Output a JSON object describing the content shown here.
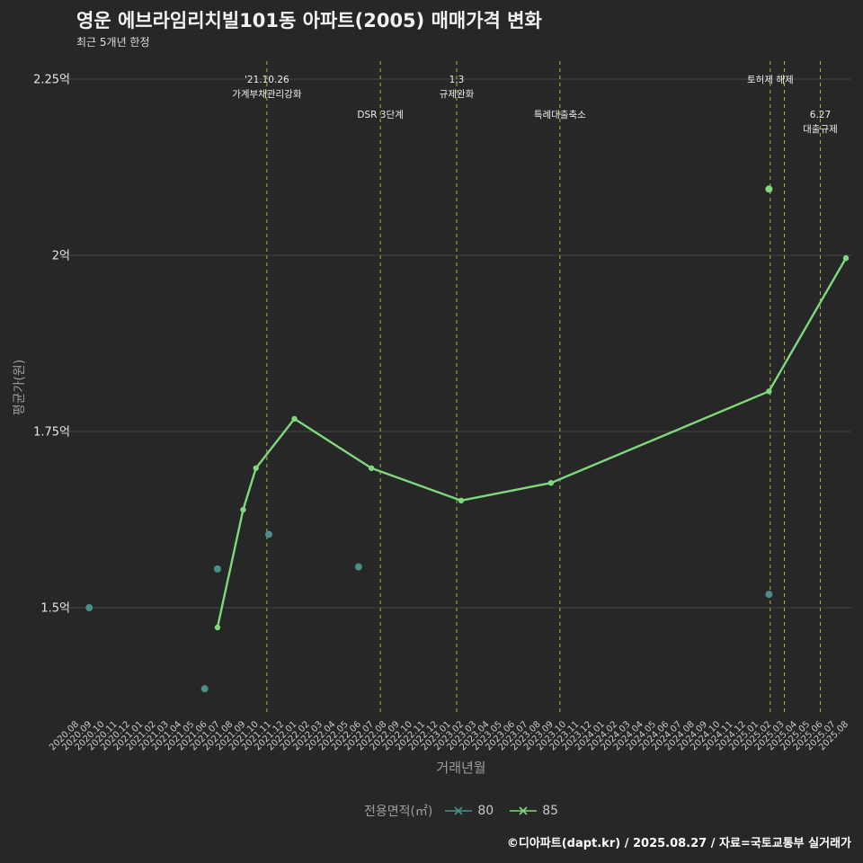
{
  "header": {
    "title": "영운 에브라임리치빌101동 아파트(2005) 매매가격 변화",
    "subtitle": "최근 5개년 한정"
  },
  "chart_data": {
    "type": "line",
    "title": "영운 에브라임리치빌101동 아파트(2005) 매매가격 변화",
    "subtitle": "최근 5개년 한정",
    "xlabel": "거래년월",
    "ylabel": "평균가(원)",
    "grid": true,
    "legend": {
      "title": "전용면적(㎡)",
      "position": "bottom"
    },
    "ylim": [
      1.35,
      2.28
    ],
    "y_ticks": [
      {
        "label": "2.25억",
        "value": 2.25
      },
      {
        "label": "2억",
        "value": 2.0
      },
      {
        "label": "1.75억",
        "value": 1.75
      },
      {
        "label": "1.5억",
        "value": 1.5
      }
    ],
    "x_ticks": [
      "2020.08",
      "2020.09",
      "2020.10",
      "2020.11",
      "2020.12",
      "2021.01",
      "2021.02",
      "2021.03",
      "2021.04",
      "2021.05",
      "2021.06",
      "2021.07",
      "2021.08",
      "2021.09",
      "2021.10",
      "2021.11",
      "2021.12",
      "2022.01",
      "2022.02",
      "2022.03",
      "2022.04",
      "2022.05",
      "2022.06",
      "2022.07",
      "2022.08",
      "2022.09",
      "2022.10",
      "2022.11",
      "2022.12",
      "2023.01",
      "2023.02",
      "2023.03",
      "2023.04",
      "2023.05",
      "2023.06",
      "2023.07",
      "2023.08",
      "2023.09",
      "2023.10",
      "2023.11",
      "2023.12",
      "2024.01",
      "2024.02",
      "2024.03",
      "2024.04",
      "2024.05",
      "2024.06",
      "2024.07",
      "2024.08",
      "2024.09",
      "2024.10",
      "2024.11",
      "2024.12",
      "2025.01",
      "2025.02",
      "2025.03",
      "2025.04",
      "2025.05",
      "2025.06",
      "2025.07",
      "2025.08"
    ],
    "series": [
      {
        "name": "80",
        "color": "#4a8f8c",
        "style": "scatter",
        "points": [
          [
            "2020.09",
            1.5
          ],
          [
            "2021.06",
            1.385
          ],
          [
            "2021.07",
            1.555
          ],
          [
            "2021.11",
            1.604
          ],
          [
            "2022.06",
            1.558
          ],
          [
            "2025.02",
            1.519
          ]
        ]
      },
      {
        "name": "85",
        "color": "#7ed87c",
        "style": "line",
        "points": [
          [
            "2021.07",
            1.472
          ],
          [
            "2021.09",
            1.639
          ],
          [
            "2021.10",
            1.698
          ],
          [
            "2022.01",
            1.768
          ],
          [
            "2022.07",
            1.698
          ],
          [
            "2023.02",
            1.652
          ],
          [
            "2023.09",
            1.677
          ],
          [
            "2025.02",
            1.807
          ],
          [
            "2025.08",
            1.996
          ]
        ],
        "isolated_points": [
          [
            "2025.02",
            2.094
          ]
        ]
      }
    ],
    "event_line_color": "#b1b13d",
    "events": [
      {
        "line1": "'21.10.26",
        "line2": "가계부채관리강화",
        "month": 14.85,
        "level": 1
      },
      {
        "line1": "DSR 3단계",
        "line2": "",
        "month": 23.7,
        "level": 2
      },
      {
        "line1": "1.3",
        "line2": "규제완화",
        "month": 29.65,
        "level": 1
      },
      {
        "line1": "특례대출축소",
        "line2": "",
        "month": 37.7,
        "level": 2
      },
      {
        "line1": "토허제 해제",
        "line2": "",
        "month": 54.1,
        "level": 1
      },
      {
        "line1": "",
        "line2": "",
        "month": 55.2,
        "level": 1
      },
      {
        "line1": "6.27",
        "line2": "대출규제",
        "month": 58.0,
        "level": 2
      }
    ]
  },
  "footer": {
    "credit": "©디아파트(dapt.kr) / 2025.08.27 / 자료=국토교통부 실거래가"
  }
}
